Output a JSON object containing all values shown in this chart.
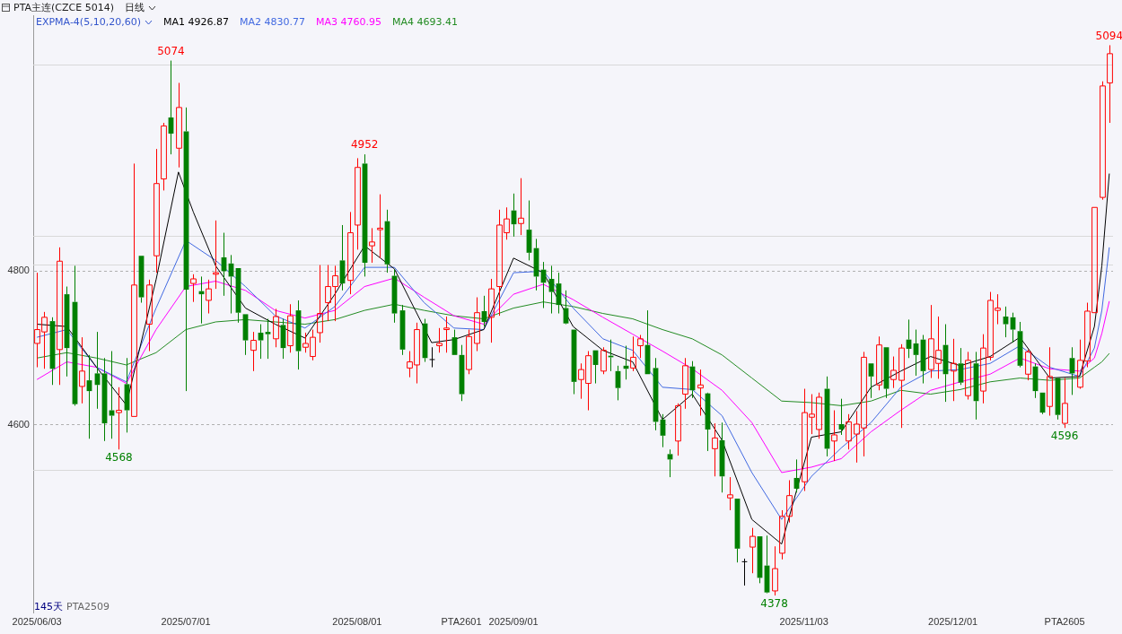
{
  "chart_data": {
    "type": "candlestick",
    "title": "PTA主连(CZCE 5014)",
    "subtitle": "日线",
    "legend_title": "EXPMA-4(5,10,20,60)",
    "categories": [
      "2025/06/03",
      null,
      null,
      null,
      null,
      null,
      null,
      null,
      null,
      null,
      null,
      null,
      null,
      null,
      null,
      null,
      null,
      null,
      null,
      null,
      "2025/07/01",
      null,
      null,
      null,
      null,
      null,
      null,
      null,
      null,
      null,
      null,
      null,
      null,
      null,
      null,
      null,
      null,
      null,
      null,
      null,
      null,
      null,
      null,
      "2025/08/01",
      null,
      null,
      null,
      null,
      null,
      null,
      null,
      null,
      null,
      null,
      null,
      null,
      null,
      "PTA2601",
      null,
      null,
      null,
      null,
      null,
      null,
      "2025/09/01",
      null,
      null,
      null,
      null,
      null,
      null,
      null,
      null,
      null,
      null,
      null,
      null,
      null,
      null,
      null,
      null,
      null,
      null,
      null,
      null,
      null,
      null,
      null,
      null,
      null,
      null,
      null,
      null,
      null,
      null,
      null,
      null,
      null,
      null,
      null,
      null,
      null,
      null,
      "2025/11/03",
      null,
      null,
      null,
      null,
      null,
      null,
      null,
      null,
      null,
      null,
      null,
      null,
      null,
      null,
      null,
      null,
      null,
      null,
      null,
      "2025/12/01",
      null,
      null,
      null,
      null,
      null,
      null,
      null,
      null,
      null,
      null,
      null,
      null,
      null,
      null,
      "PTA2605",
      null,
      null,
      null,
      null,
      null,
      null
    ],
    "ohlc": [
      [
        4706,
        4798,
        4675,
        4724
      ],
      [
        4721,
        4747,
        4673,
        4740
      ],
      [
        4735,
        4740,
        4652,
        4673
      ],
      [
        4698,
        4831,
        4652,
        4813
      ],
      [
        4770,
        4780,
        4663,
        4700
      ],
      [
        4760,
        4807,
        4625,
        4627
      ],
      [
        4650,
        4714,
        4628,
        4670
      ],
      [
        4658,
        4691,
        4582,
        4644
      ],
      [
        4667,
        4721,
        4621,
        4652
      ],
      [
        4667,
        4687,
        4579,
        4602
      ],
      [
        4619,
        4696,
        4582,
        4612
      ],
      [
        4616,
        4649,
        4568,
        4619
      ],
      [
        4653,
        4687,
        4590,
        4619
      ],
      [
        4611,
        4940,
        4611,
        4782
      ],
      [
        4820,
        4820,
        4759,
        4766
      ],
      [
        4731,
        4789,
        4696,
        4782
      ],
      [
        4820,
        4959,
        4798,
        4914
      ],
      [
        4920,
        4993,
        4905,
        4989
      ],
      [
        5000,
        5074,
        4952,
        4979
      ],
      [
        4960,
        5045,
        4935,
        5013
      ],
      [
        4982,
        5013,
        4644,
        4776
      ],
      [
        4784,
        4796,
        4760,
        4790
      ],
      [
        4774,
        4793,
        4732,
        4770
      ],
      [
        4762,
        4789,
        4745,
        4777
      ],
      [
        4796,
        4866,
        4777,
        4798
      ],
      [
        4818,
        4850,
        4768,
        4800
      ],
      [
        4810,
        4821,
        4745,
        4793
      ],
      [
        4804,
        4804,
        4733,
        4746
      ],
      [
        4744,
        4744,
        4691,
        4710
      ],
      [
        4697,
        4721,
        4670,
        4710
      ],
      [
        4720,
        4731,
        4686,
        4710
      ],
      [
        4721,
        4738,
        4686,
        4718
      ],
      [
        4712,
        4751,
        4701,
        4741
      ],
      [
        4730,
        4738,
        4686,
        4700
      ],
      [
        4703,
        4757,
        4694,
        4742
      ],
      [
        4749,
        4762,
        4672,
        4696
      ],
      [
        4701,
        4720,
        4694,
        4706
      ],
      [
        4689,
        4724,
        4684,
        4714
      ],
      [
        4720,
        4808,
        4707,
        4745
      ],
      [
        4759,
        4808,
        4735,
        4780
      ],
      [
        4780,
        4807,
        4735,
        4794
      ],
      [
        4814,
        4860,
        4775,
        4784
      ],
      [
        4788,
        4877,
        4770,
        4850
      ],
      [
        4860,
        4947,
        4828,
        4935
      ],
      [
        4940,
        4952,
        4793,
        4811
      ],
      [
        4833,
        4856,
        4811,
        4838
      ],
      [
        4854,
        4900,
        4817,
        4856
      ],
      [
        4865,
        4880,
        4798,
        4809
      ],
      [
        4794,
        4802,
        4733,
        4745
      ],
      [
        4749,
        4756,
        4691,
        4698
      ],
      [
        4674,
        4696,
        4662,
        4682
      ],
      [
        4678,
        4733,
        4654,
        4724
      ],
      [
        4732,
        4738,
        4682,
        4687
      ],
      [
        4685,
        4701,
        4675,
        4685
      ],
      [
        4703,
        4726,
        4694,
        4706
      ],
      [
        4724,
        4741,
        4694,
        4726
      ],
      [
        4714,
        4724,
        4691,
        4691
      ],
      [
        4691,
        4704,
        4631,
        4640
      ],
      [
        4672,
        4724,
        4666,
        4715
      ],
      [
        4706,
        4766,
        4696,
        4746
      ],
      [
        4748,
        4768,
        4728,
        4734
      ],
      [
        4740,
        4790,
        4707,
        4777
      ],
      [
        4780,
        4880,
        4742,
        4860
      ],
      [
        4850,
        4883,
        4841,
        4868
      ],
      [
        4879,
        4901,
        4845,
        4861
      ],
      [
        4862,
        4921,
        4847,
        4869
      ],
      [
        4854,
        4892,
        4814,
        4824
      ],
      [
        4830,
        4842,
        4775,
        4793
      ],
      [
        4802,
        4812,
        4752,
        4785
      ],
      [
        4790,
        4807,
        4745,
        4773
      ],
      [
        4784,
        4798,
        4745,
        4756
      ],
      [
        4752,
        4775,
        4731,
        4732
      ],
      [
        4724,
        4724,
        4640,
        4656
      ],
      [
        4659,
        4680,
        4634,
        4672
      ],
      [
        4654,
        4696,
        4619,
        4690
      ],
      [
        4697,
        4697,
        4654,
        4678
      ],
      [
        4670,
        4701,
        4666,
        4697
      ],
      [
        4690,
        4711,
        4670,
        4688
      ],
      [
        4670,
        4677,
        4632,
        4648
      ],
      [
        4677,
        4703,
        4659,
        4673
      ],
      [
        4674,
        4715,
        4670,
        4688
      ],
      [
        4703,
        4717,
        4687,
        4712
      ],
      [
        4704,
        4749,
        4666,
        4666
      ],
      [
        4674,
        4687,
        4593,
        4604
      ],
      [
        4607,
        4614,
        4571,
        4586
      ],
      [
        4562,
        4568,
        4532,
        4555
      ],
      [
        4579,
        4628,
        4560,
        4625
      ],
      [
        4640,
        4687,
        4621,
        4677
      ],
      [
        4676,
        4683,
        4635,
        4645
      ],
      [
        4648,
        4672,
        4612,
        4652
      ],
      [
        4641,
        4642,
        4566,
        4594
      ],
      [
        4569,
        4602,
        4533,
        4583
      ],
      [
        4580,
        4603,
        4512,
        4533
      ],
      [
        4505,
        4532,
        4489,
        4509
      ],
      [
        4504,
        4504,
        4421,
        4439
      ],
      [
        4422,
        4426,
        4391,
        4422
      ],
      [
        4441,
        4466,
        4407,
        4455
      ],
      [
        4455,
        4455,
        4394,
        4401
      ],
      [
        4417,
        4456,
        4381,
        4382
      ],
      [
        4384,
        4442,
        4378,
        4413
      ],
      [
        4433,
        4489,
        4425,
        4481
      ],
      [
        4481,
        4528,
        4473,
        4508
      ],
      [
        4531,
        4555,
        4512,
        4517
      ],
      [
        4526,
        4647,
        4514,
        4616
      ],
      [
        4610,
        4640,
        4588,
        4614
      ],
      [
        4594,
        4642,
        4582,
        4636
      ],
      [
        4647,
        4663,
        4559,
        4569
      ],
      [
        4579,
        4619,
        4553,
        4587
      ],
      [
        4601,
        4634,
        4587,
        4594
      ],
      [
        4579,
        4614,
        4568,
        4604
      ],
      [
        4588,
        4618,
        4551,
        4601
      ],
      [
        4596,
        4695,
        4559,
        4688
      ],
      [
        4680,
        4680,
        4635,
        4663
      ],
      [
        4652,
        4715,
        4645,
        4704
      ],
      [
        4701,
        4701,
        4635,
        4647
      ],
      [
        4659,
        4689,
        4648,
        4671
      ],
      [
        4658,
        4705,
        4596,
        4700
      ],
      [
        4711,
        4737,
        4687,
        4699
      ],
      [
        4706,
        4724,
        4664,
        4691
      ],
      [
        4711,
        4717,
        4654,
        4670
      ],
      [
        4672,
        4756,
        4661,
        4712
      ],
      [
        4680,
        4741,
        4660,
        4697
      ],
      [
        4704,
        4731,
        4630,
        4666
      ],
      [
        4670,
        4712,
        4631,
        4680
      ],
      [
        4680,
        4700,
        4652,
        4655
      ],
      [
        4638,
        4695,
        4633,
        4684
      ],
      [
        4680,
        4695,
        4607,
        4631
      ],
      [
        4644,
        4718,
        4628,
        4700
      ],
      [
        4688,
        4773,
        4684,
        4762
      ],
      [
        4749,
        4770,
        4731,
        4752
      ],
      [
        4741,
        4754,
        4714,
        4731
      ],
      [
        4740,
        4746,
        4707,
        4724
      ],
      [
        4722,
        4734,
        4675,
        4677
      ],
      [
        4666,
        4698,
        4658,
        4695
      ],
      [
        4676,
        4680,
        4635,
        4644
      ],
      [
        4642,
        4642,
        4614,
        4616
      ],
      [
        4624,
        4701,
        4612,
        4663
      ],
      [
        4661,
        4661,
        4607,
        4613
      ],
      [
        4602,
        4661,
        4596,
        4628
      ],
      [
        4687,
        4701,
        4639,
        4667
      ],
      [
        4649,
        4711,
        4647,
        4684
      ],
      [
        4683,
        4759,
        4675,
        4748
      ],
      [
        4746,
        4883,
        4746,
        4883
      ],
      [
        4896,
        5047,
        4893,
        5041
      ],
      [
        5045,
        5094,
        4993,
        5083
      ]
    ],
    "colors": [
      "#ff0000",
      "#ff0000",
      "#008000",
      "#ff0000",
      "#008000",
      "#008000",
      "#ff0000",
      "#008000",
      "#008000",
      "#008000",
      "#008000",
      "#ff0000",
      "#008000",
      "#ff0000",
      "#008000",
      "#ff0000",
      "#ff0000",
      "#ff0000",
      "#008000",
      "#ff0000",
      "#008000",
      "#ff0000",
      "#008000",
      "#ff0000",
      "#ff0000",
      "#008000",
      "#008000",
      "#008000",
      "#008000",
      "#ff0000",
      "#008000",
      "#008000",
      "#ff0000",
      "#008000",
      "#ff0000",
      "#008000",
      "#ff0000",
      "#ff0000",
      "#ff0000",
      "#ff0000",
      "#ff0000",
      "#008000",
      "#ff0000",
      "#ff0000",
      "#008000",
      "#ff0000",
      "#ff0000",
      "#008000",
      "#008000",
      "#008000",
      "#ff0000",
      "#ff0000",
      "#008000",
      "#000000",
      "#ff0000",
      "#ff0000",
      "#008000",
      "#008000",
      "#ff0000",
      "#ff0000",
      "#008000",
      "#ff0000",
      "#ff0000",
      "#ff0000",
      "#008000",
      "#ff0000",
      "#008000",
      "#008000",
      "#008000",
      "#008000",
      "#008000",
      "#008000",
      "#008000",
      "#ff0000",
      "#ff0000",
      "#008000",
      "#ff0000",
      "#008000",
      "#008000",
      "#008000",
      "#ff0000",
      "#ff0000",
      "#008000",
      "#008000",
      "#008000",
      "#008000",
      "#ff0000",
      "#ff0000",
      "#008000",
      "#ff0000",
      "#008000",
      "#ff0000",
      "#008000",
      "#ff0000",
      "#008000",
      "#000000",
      "#ff0000",
      "#008000",
      "#008000",
      "#ff0000",
      "#ff0000",
      "#ff0000",
      "#008000",
      "#ff0000",
      "#ff0000",
      "#ff0000",
      "#008000",
      "#ff0000",
      "#008000",
      "#ff0000",
      "#ff0000",
      "#ff0000",
      "#008000",
      "#ff0000",
      "#008000",
      "#ff0000",
      "#ff0000",
      "#008000",
      "#008000",
      "#008000",
      "#ff0000",
      "#ff0000",
      "#008000",
      "#ff0000",
      "#008000",
      "#ff0000",
      "#008000",
      "#ff0000",
      "#ff0000",
      "#ff0000",
      "#008000",
      "#008000",
      "#008000",
      "#ff0000",
      "#008000",
      "#008000",
      "#ff0000",
      "#008000",
      "#ff0000",
      "#008000",
      "#ff0000",
      "#ff0000",
      "#ff0000",
      "#ff0000",
      "#ff0000"
    ],
    "value_labels": [
      null,
      null,
      null,
      null,
      null,
      null,
      null,
      null,
      null,
      null,
      null,
      "4568",
      null,
      null,
      null,
      null,
      null,
      null,
      "5074",
      null,
      null,
      null,
      null,
      null,
      null,
      null,
      null,
      null,
      null,
      null,
      null,
      null,
      null,
      null,
      null,
      null,
      null,
      null,
      null,
      null,
      null,
      null,
      null,
      null,
      "4952",
      null,
      null,
      null,
      null,
      null,
      null,
      null,
      null,
      null,
      null,
      null,
      null,
      null,
      null,
      null,
      null,
      null,
      null,
      null,
      null,
      null,
      null,
      null,
      null,
      null,
      null,
      null,
      null,
      null,
      null,
      null,
      null,
      null,
      null,
      null,
      null,
      null,
      null,
      null,
      null,
      null,
      null,
      null,
      null,
      null,
      null,
      null,
      null,
      null,
      null,
      null,
      null,
      null,
      null,
      "4378",
      null,
      null,
      null,
      null,
      null,
      null,
      null,
      null,
      null,
      null,
      null,
      null,
      null,
      null,
      null,
      null,
      null,
      null,
      null,
      null,
      null,
      null,
      null,
      null,
      null,
      null,
      null,
      null,
      null,
      null,
      null,
      null,
      null,
      null,
      null,
      null,
      null,
      null,
      "4596",
      null,
      null,
      null,
      null,
      null,
      "5094"
    ],
    "series": [
      {
        "name": "MA1 4926.87",
        "type": "line",
        "color": "#000000",
        "values": [
          4731,
          null,
          null,
          null,
          4728,
          null,
          null,
          null,
          4675,
          null,
          null,
          null,
          4626,
          null,
          null,
          null,
          4789,
          null,
          null,
          4929,
          null,
          4877,
          null,
          null,
          4807,
          null,
          null,
          null,
          4752,
          null,
          null,
          null,
          4731,
          null,
          null,
          null,
          4713,
          null,
          null,
          null,
          4770,
          null,
          null,
          null,
          4833,
          null,
          null,
          null,
          4803,
          null,
          null,
          null,
          null,
          4707,
          null,
          null,
          4711,
          null,
          null,
          null,
          4724,
          null,
          null,
          null,
          4817,
          null,
          null,
          null,
          4798,
          null,
          null,
          null,
          4728,
          null,
          null,
          null,
          4697,
          null,
          null,
          null,
          4682,
          null,
          null,
          null,
          4607,
          null,
          null,
          null,
          4640,
          null,
          null,
          null,
          4580,
          null,
          null,
          null,
          4477,
          null,
          null,
          null,
          4445,
          null,
          null,
          null,
          4584,
          null,
          null,
          null,
          4591,
          null,
          null,
          null,
          4649,
          null,
          null,
          null,
          4670,
          null,
          null,
          null,
          4689,
          null,
          null,
          null,
          4677,
          null,
          null,
          null,
          4689,
          null,
          null,
          null,
          4714,
          null,
          null,
          null,
          4661,
          null,
          null,
          null,
          4663,
          null,
          4728,
          4807,
          4927
        ]
      },
      {
        "name": "MA2 4830.77",
        "type": "line",
        "color": "#4169e1",
        "values": [
          4714,
          null,
          null,
          null,
          4724,
          null,
          null,
          null,
          4675,
          null,
          null,
          null,
          4656,
          null,
          null,
          null,
          4752,
          null,
          null,
          null,
          4840,
          null,
          null,
          null,
          4814,
          null,
          null,
          null,
          4780,
          null,
          null,
          null,
          4742,
          null,
          null,
          null,
          4726,
          null,
          null,
          null,
          4754,
          null,
          null,
          null,
          4805,
          null,
          null,
          null,
          4805,
          null,
          null,
          null,
          4759,
          null,
          null,
          null,
          4726,
          null,
          null,
          null,
          4724,
          null,
          null,
          null,
          4798,
          null,
          null,
          null,
          4800,
          null,
          null,
          null,
          4752,
          null,
          null,
          null,
          4712,
          null,
          null,
          null,
          4697,
          null,
          null,
          null,
          4649,
          null,
          null,
          null,
          4646,
          null,
          null,
          null,
          4612,
          null,
          null,
          null,
          4538,
          null,
          null,
          null,
          4477,
          null,
          null,
          null,
          4533,
          null,
          null,
          null,
          4570,
          null,
          null,
          null,
          4603,
          null,
          null,
          null,
          4649,
          null,
          null,
          null,
          4670,
          null,
          null,
          null,
          4672,
          null,
          null,
          null,
          4680,
          null,
          null,
          null,
          4703,
          null,
          null,
          null,
          4675,
          null,
          null,
          null,
          4663,
          null,
          4700,
          4749,
          4831
        ]
      },
      {
        "name": "MA3 4760.95",
        "type": "line",
        "color": "#ff00ff",
        "values": [
          4659,
          null,
          null,
          null,
          4682,
          null,
          null,
          null,
          4675,
          null,
          null,
          null,
          4654,
          null,
          null,
          null,
          4724,
          null,
          null,
          null,
          4780,
          null,
          null,
          null,
          4787,
          null,
          null,
          null,
          4775,
          null,
          null,
          null,
          4749,
          null,
          null,
          null,
          4739,
          null,
          null,
          null,
          4749,
          null,
          null,
          null,
          4780,
          null,
          null,
          null,
          4791,
          null,
          null,
          null,
          4766,
          null,
          null,
          null,
          4742,
          null,
          null,
          null,
          4731,
          null,
          null,
          null,
          4770,
          null,
          null,
          null,
          4783,
          null,
          null,
          null,
          4763,
          null,
          null,
          null,
          4740,
          null,
          null,
          null,
          4718,
          null,
          null,
          null,
          4696,
          null,
          null,
          null,
          4673,
          null,
          null,
          null,
          4645,
          null,
          null,
          null,
          4603,
          null,
          null,
          null,
          4538,
          null,
          null,
          null,
          4545,
          null,
          null,
          null,
          4556,
          null,
          null,
          null,
          4591,
          null,
          null,
          null,
          4619,
          null,
          null,
          null,
          4645,
          null,
          null,
          null,
          4656,
          null,
          null,
          null,
          4666,
          null,
          null,
          null,
          4687,
          null,
          null,
          null,
          4673,
          null,
          null,
          null,
          4670,
          null,
          4687,
          4719,
          4761
        ]
      },
      {
        "name": "MA4 4693.41",
        "type": "line",
        "color": "#228b22",
        "values": [
          4687,
          null,
          null,
          null,
          4694,
          null,
          null,
          null,
          4687,
          null,
          null,
          null,
          4678,
          null,
          null,
          null,
          4694,
          null,
          null,
          null,
          4724,
          null,
          null,
          null,
          4734,
          null,
          null,
          null,
          4737,
          null,
          null,
          null,
          4734,
          null,
          null,
          null,
          4731,
          null,
          null,
          null,
          4737,
          null,
          null,
          null,
          4749,
          null,
          null,
          null,
          4757,
          null,
          null,
          null,
          4749,
          null,
          null,
          null,
          4742,
          null,
          null,
          null,
          4738,
          null,
          null,
          null,
          4752,
          null,
          null,
          null,
          4760,
          null,
          null,
          null,
          4754,
          null,
          null,
          null,
          4745,
          null,
          null,
          null,
          4738,
          null,
          null,
          null,
          4724,
          null,
          null,
          null,
          4712,
          null,
          null,
          null,
          4691,
          null,
          null,
          null,
          4661,
          null,
          null,
          null,
          4631,
          null,
          null,
          null,
          4629,
          null,
          null,
          null,
          4625,
          null,
          null,
          null,
          4631,
          null,
          null,
          null,
          4645,
          null,
          null,
          null,
          4640,
          null,
          null,
          null,
          4646,
          null,
          null,
          null,
          4656,
          null,
          null,
          null,
          4661,
          null,
          null,
          null,
          4658,
          null,
          null,
          null,
          4661,
          null,
          4675,
          4682,
          4693
        ]
      }
    ],
    "ylim": [
      4355,
      5133
    ],
    "yticks": [
      4600,
      4800
    ],
    "grid": "y",
    "ref_lines": [
      {
        "axis": "y",
        "value": 5069,
        "color": "#d9d9d9"
      },
      {
        "axis": "y",
        "value": 4846,
        "color": "#d9d9d9"
      },
      {
        "axis": "y",
        "value": 4809,
        "color": "#d9d9d9"
      },
      {
        "axis": "y",
        "value": 4541,
        "color": "#d9d9d9"
      }
    ],
    "annotations": [
      "145天",
      "PTA2509"
    ]
  }
}
